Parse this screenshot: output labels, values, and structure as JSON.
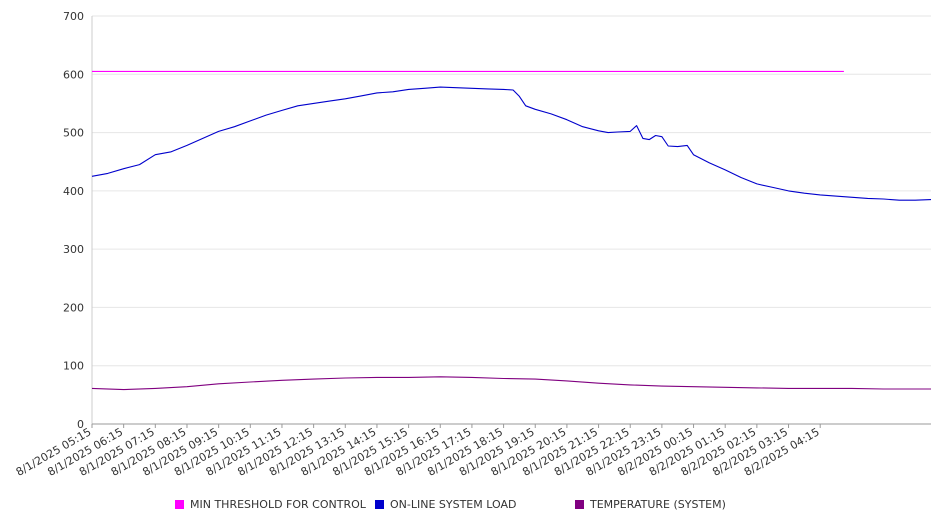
{
  "chart_data": {
    "type": "line",
    "title": "",
    "xlabel": "",
    "ylabel": "",
    "ylim": [
      0,
      700
    ],
    "yticks": [
      0,
      100,
      200,
      300,
      400,
      500,
      600,
      700
    ],
    "grid": true,
    "legend_position": "bottom",
    "x": [
      "8/1/2025 05:15",
      "8/1/2025 06:15",
      "8/1/2025 07:15",
      "8/1/2025 08:15",
      "8/1/2025 09:15",
      "8/1/2025 10:15",
      "8/1/2025 11:15",
      "8/1/2025 12:15",
      "8/1/2025 13:15",
      "8/1/2025 14:15",
      "8/1/2025 15:15",
      "8/1/2025 16:15",
      "8/1/2025 17:15",
      "8/1/2025 18:15",
      "8/1/2025 19:15",
      "8/1/2025 20:15",
      "8/1/2025 21:15",
      "8/1/2025 22:15",
      "8/1/2025 23:15",
      "8/2/2025 00:15",
      "8/2/2025 01:15",
      "8/2/2025 02:15",
      "8/2/2025 03:15",
      "8/2/2025 04:15"
    ],
    "series": [
      {
        "name": "MIN THRESHOLD FOR CONTROL",
        "color": "#ff00ff",
        "points": [
          [
            0,
            605
          ],
          [
            23.75,
            605
          ]
        ]
      },
      {
        "name": "ON-LINE SYSTEM LOAD",
        "color": "#0000cc",
        "points": [
          [
            0,
            425
          ],
          [
            0.5,
            430
          ],
          [
            1,
            438
          ],
          [
            1.5,
            445
          ],
          [
            2,
            462
          ],
          [
            2.5,
            467
          ],
          [
            3,
            478
          ],
          [
            3.5,
            490
          ],
          [
            4,
            502
          ],
          [
            4.5,
            510
          ],
          [
            5,
            520
          ],
          [
            5.5,
            530
          ],
          [
            6,
            538
          ],
          [
            6.5,
            546
          ],
          [
            7,
            550
          ],
          [
            7.5,
            554
          ],
          [
            8,
            558
          ],
          [
            8.5,
            563
          ],
          [
            9,
            568
          ],
          [
            9.5,
            570
          ],
          [
            10,
            574
          ],
          [
            10.5,
            576
          ],
          [
            11,
            578
          ],
          [
            11.5,
            577
          ],
          [
            12,
            576
          ],
          [
            12.5,
            575
          ],
          [
            13,
            574
          ],
          [
            13.3,
            573
          ],
          [
            13.5,
            562
          ],
          [
            13.7,
            546
          ],
          [
            14,
            540
          ],
          [
            14.5,
            532
          ],
          [
            15,
            522
          ],
          [
            15.5,
            510
          ],
          [
            16,
            503
          ],
          [
            16.3,
            500
          ],
          [
            16.6,
            501
          ],
          [
            17,
            502
          ],
          [
            17.2,
            512
          ],
          [
            17.4,
            490
          ],
          [
            17.6,
            488
          ],
          [
            17.8,
            495
          ],
          [
            18,
            493
          ],
          [
            18.2,
            477
          ],
          [
            18.5,
            476
          ],
          [
            18.8,
            478
          ],
          [
            19,
            462
          ],
          [
            19.5,
            448
          ],
          [
            20,
            436
          ],
          [
            20.5,
            423
          ],
          [
            21,
            412
          ],
          [
            21.5,
            406
          ],
          [
            22,
            400
          ],
          [
            22.5,
            396
          ],
          [
            23,
            393
          ],
          [
            23.75,
            390
          ],
          [
            24.5,
            387
          ],
          [
            25,
            386
          ],
          [
            25.5,
            384
          ],
          [
            26,
            384
          ],
          [
            26.5,
            385
          ]
        ]
      },
      {
        "name": "TEMPERATURE (SYSTEM)",
        "color": "#800080",
        "points": [
          [
            0,
            61
          ],
          [
            1,
            59
          ],
          [
            2,
            61
          ],
          [
            3,
            64
          ],
          [
            4,
            69
          ],
          [
            5,
            72
          ],
          [
            6,
            75
          ],
          [
            7,
            77
          ],
          [
            8,
            79
          ],
          [
            9,
            80
          ],
          [
            10,
            80
          ],
          [
            11,
            81
          ],
          [
            12,
            80
          ],
          [
            13,
            78
          ],
          [
            14,
            77
          ],
          [
            15,
            74
          ],
          [
            16,
            70
          ],
          [
            17,
            67
          ],
          [
            18,
            65
          ],
          [
            19,
            64
          ],
          [
            20,
            63
          ],
          [
            21,
            62
          ],
          [
            22,
            61
          ],
          [
            23,
            61
          ],
          [
            24,
            61
          ],
          [
            25,
            60
          ],
          [
            26,
            60
          ],
          [
            26.5,
            60
          ]
        ]
      }
    ]
  }
}
